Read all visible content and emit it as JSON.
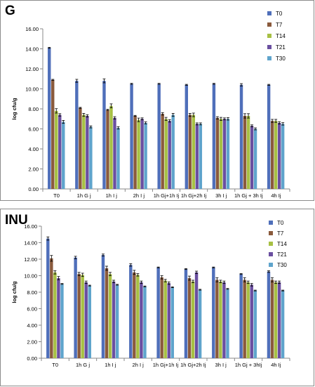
{
  "chart_data": [
    {
      "type": "bar",
      "panel_label": "G",
      "ylabel": "log cfu/g",
      "ylim": [
        0,
        16
      ],
      "yticks": [
        "0.00",
        "2.00",
        "4.00",
        "6.00",
        "8.00",
        "10.00",
        "12.00",
        "14.00",
        "16.00"
      ],
      "categories": [
        "T0",
        "1h G j",
        "1h I j",
        "2h I j",
        "1h Gj+1h Ij",
        "1h Gj+2h Ij",
        "3h I j",
        "1h Gj + 3h Ij",
        "4h Ij"
      ],
      "series": [
        {
          "name": "T0",
          "color": "#4f6fba",
          "values": [
            14.1,
            10.8,
            10.8,
            10.5,
            10.5,
            10.4,
            10.5,
            10.4,
            10.4
          ],
          "errors": [
            0.05,
            0.15,
            0.2,
            0.05,
            0.05,
            0.05,
            0.05,
            0.12,
            0.05
          ]
        },
        {
          "name": "T7",
          "color": "#8a5a3c",
          "values": [
            10.9,
            8.1,
            7.9,
            7.3,
            7.5,
            7.4,
            7.1,
            7.3,
            6.8
          ],
          "errors": [
            0.05,
            0.05,
            0.05,
            0.05,
            0.12,
            0.15,
            0.12,
            0.22,
            0.15
          ]
        },
        {
          "name": "T14",
          "color": "#a7c044",
          "values": [
            7.8,
            7.4,
            8.3,
            6.9,
            7.0,
            7.4,
            7.0,
            7.3,
            6.8
          ],
          "errors": [
            0.22,
            0.15,
            0.2,
            0.18,
            0.15,
            0.18,
            0.15,
            0.22,
            0.15
          ]
        },
        {
          "name": "T21",
          "color": "#6a4fa0",
          "values": [
            7.4,
            7.3,
            7.1,
            7.0,
            6.8,
            6.5,
            7.0,
            6.3,
            6.6
          ],
          "errors": [
            0.12,
            0.12,
            0.12,
            0.1,
            0.12,
            0.1,
            0.1,
            0.1,
            0.12
          ]
        },
        {
          "name": "T30",
          "color": "#5fa4cc",
          "values": [
            6.7,
            6.2,
            6.1,
            6.6,
            7.4,
            6.5,
            7.0,
            6.0,
            6.5
          ],
          "errors": [
            0.15,
            0.1,
            0.12,
            0.1,
            0.15,
            0.1,
            0.12,
            0.1,
            0.12
          ]
        }
      ],
      "grid": false,
      "legend_position": "top-right"
    },
    {
      "type": "bar",
      "panel_label": "INU",
      "ylabel": "log cfu/g",
      "ylim": [
        0,
        16
      ],
      "yticks": [
        "0.00",
        "2.00",
        "4.00",
        "6.00",
        "8.00",
        "10.00",
        "12.00",
        "14.00",
        "16.00"
      ],
      "categories": [
        "T0",
        "1h G j",
        "1h I j",
        "2h I j",
        "1h Gj+1h Ij",
        "1h Gj+2h Ij",
        "3h I j",
        "1h Gj + 3hIj",
        "4h Ij"
      ],
      "series": [
        {
          "name": "T0",
          "color": "#4f6fba",
          "values": [
            14.5,
            12.2,
            12.5,
            11.3,
            11.0,
            10.8,
            11.0,
            10.2,
            10.5
          ],
          "errors": [
            0.2,
            0.15,
            0.12,
            0.15,
            0.05,
            0.05,
            0.05,
            0.05,
            0.1
          ]
        },
        {
          "name": "T7",
          "color": "#8a5a3c",
          "values": [
            12.1,
            10.2,
            10.9,
            10.4,
            9.8,
            9.7,
            9.5,
            9.5,
            9.5
          ],
          "errors": [
            0.35,
            0.2,
            0.25,
            0.25,
            0.2,
            0.25,
            0.25,
            0.25,
            0.25
          ]
        },
        {
          "name": "T14",
          "color": "#a7c044",
          "values": [
            10.4,
            10.1,
            10.2,
            10.1,
            9.4,
            9.3,
            9.3,
            9.2,
            9.2
          ],
          "errors": [
            0.2,
            0.2,
            0.2,
            0.15,
            0.15,
            0.15,
            0.15,
            0.15,
            0.15
          ]
        },
        {
          "name": "T21",
          "color": "#6a4fa0",
          "values": [
            9.7,
            9.2,
            9.3,
            9.2,
            9.1,
            10.4,
            9.2,
            8.9,
            9.2
          ],
          "errors": [
            0.2,
            0.15,
            0.15,
            0.15,
            0.15,
            0.15,
            0.15,
            0.15,
            0.15
          ]
        },
        {
          "name": "T30",
          "color": "#5fa4cc",
          "values": [
            9.0,
            8.8,
            8.9,
            8.7,
            8.6,
            8.3,
            8.4,
            8.2,
            8.2
          ],
          "errors": [
            0.05,
            0.05,
            0.05,
            0.05,
            0.05,
            0.05,
            0.05,
            0.05,
            0.05
          ]
        }
      ],
      "grid": false,
      "legend_position": "top-right"
    }
  ]
}
